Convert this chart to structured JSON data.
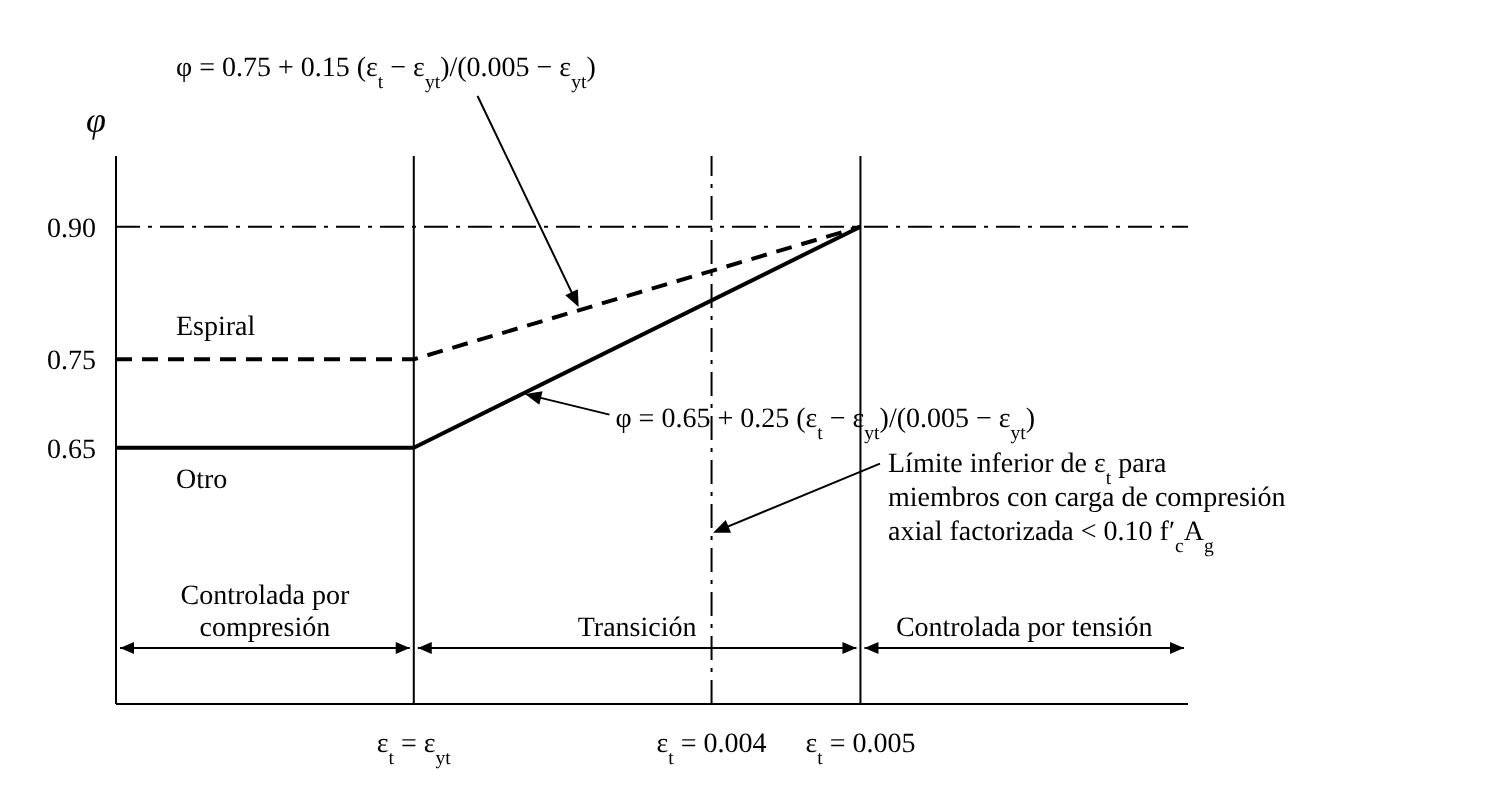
{
  "chart_data": {
    "type": "line",
    "ylabel": "φ",
    "x": [
      0,
      0.002,
      0.005
    ],
    "series": [
      {
        "name": "Espiral",
        "color": "#000000",
        "values": [
          0.75,
          0.75,
          0.9
        ],
        "line_style": "dashed"
      },
      {
        "name": "Otro",
        "color": "#000000",
        "values": [
          0.65,
          0.65,
          0.9
        ],
        "line_style": "solid"
      }
    ],
    "xlim": [
      0,
      0.0072
    ],
    "xticks": [
      {
        "value": 0.002,
        "label": "ε$_{t}$ = ε$_{yt}$"
      },
      {
        "value": 0.004,
        "label": "ε$_{t}$ = 0.004"
      },
      {
        "value": 0.005,
        "label": "ε$_{t}$ = 0.005"
      }
    ],
    "ylim": [
      0.36,
      0.98
    ],
    "yticks": [
      0.65,
      0.75,
      {
        "value": 0.9,
        "label": "0.90"
      }
    ],
    "ref_lines": [
      {
        "axis": "y",
        "value": 0.9,
        "line_style": "dashed",
        "color": "#000000"
      },
      {
        "axis": "x",
        "value": 0.002,
        "line_style": "solid",
        "color": "#000000"
      },
      {
        "axis": "x",
        "value": 0.004,
        "line_style": "dashed",
        "color": "#000000"
      },
      {
        "axis": "x",
        "value": 0.005,
        "line_style": "solid",
        "color": "#000000"
      }
    ],
    "annotations": [
      {
        "text": "φ = 0.75 + 0.15 (ε$_{t}$ − ε$_{yt}$)/(0.005 − ε$_{yt}$)",
        "x": 0.0031,
        "y": 0.805
      },
      {
        "text": "φ = 0.65 + 0.25 (ε$_{t}$ − ε$_{yt}$)/(0.005 − ε$_{yt}$)",
        "x": 0.00275,
        "y": 0.71
      },
      {
        "text": "Límite inferior de ε$_{t}$ para miembros con carga de compresión axial factorizada < 0.10 f′$_{c}$A$_{g}$",
        "x": 0.004,
        "y": 0.555
      },
      "Controlada por compresión",
      "Transición",
      "Controlada por tensión"
    ],
    "grid": false,
    "legend": false,
    "marker": "none"
  }
}
